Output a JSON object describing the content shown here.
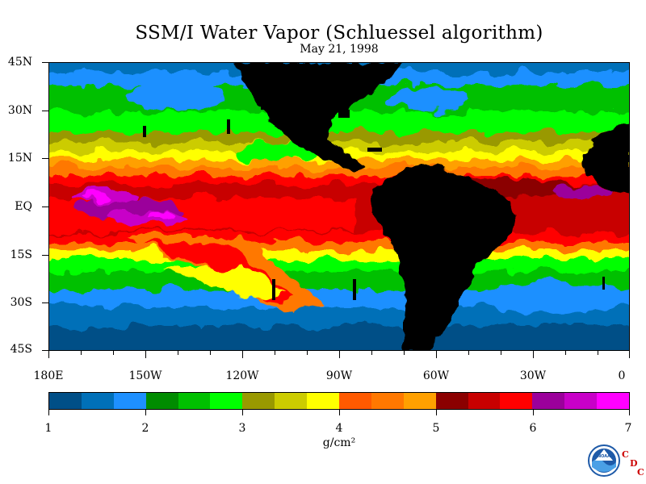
{
  "title": "SSM/I Water Vapor (Schluessel algorithm)",
  "subtitle": "May 21, 1998",
  "lat_labels": [
    "45N",
    "30N",
    "15N",
    "EQ",
    "15S",
    "30S",
    "45S"
  ],
  "lon_labels": [
    "180E",
    "150W",
    "120W",
    "90W",
    "60W",
    "30W",
    "0"
  ],
  "colorbar": {
    "labels": [
      "1",
      "2",
      "3",
      "4",
      "5",
      "6",
      "7"
    ],
    "unit": "g/cm²",
    "colors": [
      "#004f87",
      "#0070b8",
      "#1e90ff",
      "#008c00",
      "#00c000",
      "#00ff00",
      "#999900",
      "#cccc00",
      "#ffff00",
      "#ff5a00",
      "#ff7800",
      "#ffa000",
      "#8b0000",
      "#c80000",
      "#ff0000",
      "#9b009b",
      "#c800c8",
      "#ff00ff"
    ]
  },
  "logo": {
    "text": "NOAA",
    "letters": [
      "C",
      "D",
      "C"
    ]
  }
}
